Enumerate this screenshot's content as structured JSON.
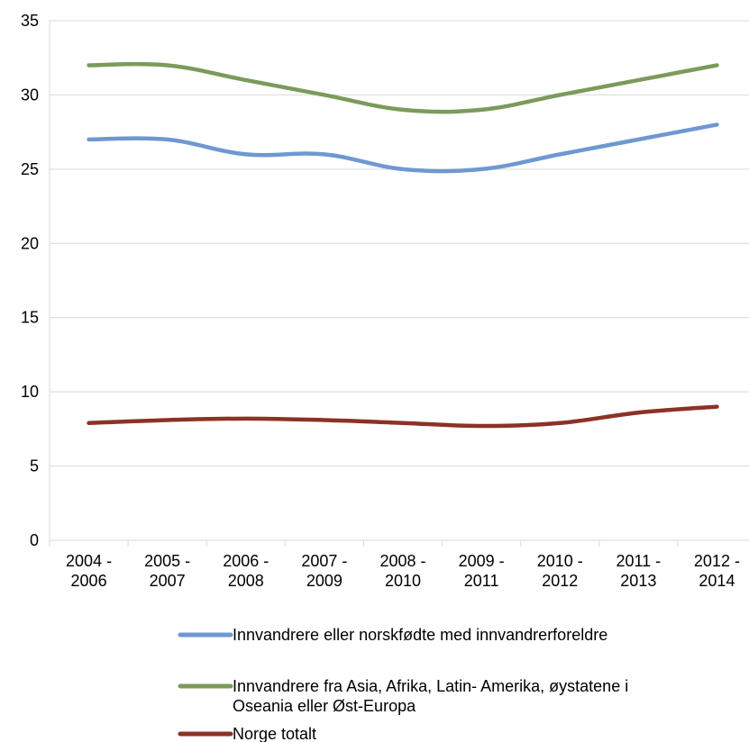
{
  "chart_data": {
    "type": "line",
    "title": "",
    "xlabel": "",
    "ylabel": "",
    "categories": [
      [
        "2004 -",
        "2006"
      ],
      [
        "2005 -",
        "2007"
      ],
      [
        "2006 -",
        "2008"
      ],
      [
        "2007 -",
        "2009"
      ],
      [
        "2008 -",
        "2010"
      ],
      [
        "2009 -",
        "2011"
      ],
      [
        "2010 -",
        "2012"
      ],
      [
        "2011 -",
        "2013"
      ],
      [
        "2012 -",
        "2014"
      ]
    ],
    "ylim": [
      0,
      35
    ],
    "yticks": [
      "0",
      "5",
      "10",
      "15",
      "20",
      "25",
      "30",
      "35"
    ],
    "grid": true,
    "legend_position": "bottom",
    "series": [
      {
        "name": "Innvandrere eller norskfødte med innvandrerforeldre",
        "legend_lines": [
          "Innvandrere eller norskfødte med innvandrerforeldre"
        ],
        "color": "#6f98d2",
        "values": [
          27,
          27,
          26,
          26,
          25,
          25,
          26,
          27,
          28
        ]
      },
      {
        "name": "Innvandrere fra Asia, Afrika, Latin- Amerika, øystatene i Oseania eller Øst-Europa",
        "legend_lines": [
          "Innvandrere fra Asia, Afrika, Latin- Amerika, øystatene i",
          "Oseania eller Øst-Europa"
        ],
        "color": "#7c9a5b",
        "values": [
          32,
          32,
          31,
          30,
          29,
          29,
          30,
          31,
          32
        ]
      },
      {
        "name": "Norge totalt",
        "legend_lines": [
          "Norge totalt"
        ],
        "color": "#8c3226",
        "values": [
          7.9,
          8.1,
          8.2,
          8.1,
          7.9,
          7.7,
          7.9,
          8.6,
          9.0
        ]
      }
    ]
  }
}
